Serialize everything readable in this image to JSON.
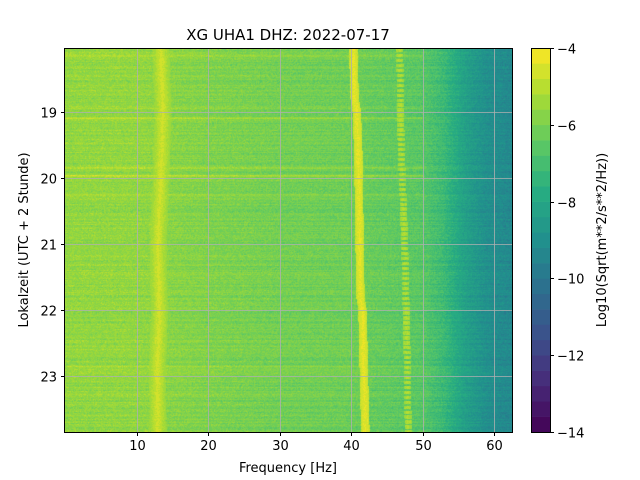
{
  "chart_data": {
    "type": "heatmap",
    "title": "XG UHA1  DHZ: 2022-07-17",
    "xlabel": "Frequency [Hz]",
    "ylabel": "Lokalzeit (UTC + 2 Stunde)",
    "colorbar_label": "Log10(Sqrt(m**2/s**2/Hz))",
    "colormap": "viridis",
    "xlim": [
      0,
      62.5
    ],
    "ylim": [
      18.05,
      23.85
    ],
    "y_inverted": true,
    "grid": true,
    "x_ticks": [
      10,
      20,
      30,
      40,
      50,
      60
    ],
    "x_tick_labels": [
      "10",
      "20",
      "30",
      "40",
      "50",
      "60"
    ],
    "y_ticks": [
      19,
      20,
      21,
      22,
      23
    ],
    "y_tick_labels": [
      "19",
      "20",
      "21",
      "22",
      "23"
    ],
    "color_range": [
      -14,
      -4
    ],
    "color_levels": 25,
    "colorbar_ticks": [
      -4,
      -6,
      -8,
      -10,
      -12,
      -14
    ],
    "colorbar_tick_labels": [
      "−4",
      "−6",
      "−8",
      "−10",
      "−12",
      "−14"
    ],
    "background_level_by_frequency": [
      {
        "freq": 0,
        "level": -5.6
      },
      {
        "freq": 10,
        "level": -5.6
      },
      {
        "freq": 20,
        "level": -5.9
      },
      {
        "freq": 30,
        "level": -6.1
      },
      {
        "freq": 40,
        "level": -6.2
      },
      {
        "freq": 45,
        "level": -6.4
      },
      {
        "freq": 50,
        "level": -6.6
      },
      {
        "freq": 53,
        "level": -7.2
      },
      {
        "freq": 56,
        "level": -8.3
      },
      {
        "freq": 59,
        "level": -9.0
      },
      {
        "freq": 62.5,
        "level": -9.3
      }
    ],
    "spectral_lines": [
      {
        "name": "line ~13 Hz",
        "level": -4.6,
        "width_hz": 1.2,
        "track": [
          [
            18.05,
            13.4
          ],
          [
            19.0,
            13.7
          ],
          [
            20.0,
            13.4
          ],
          [
            21.0,
            13.0
          ],
          [
            22.0,
            13.2
          ],
          [
            23.0,
            12.9
          ],
          [
            23.85,
            13.0
          ]
        ]
      },
      {
        "name": "line ~42 Hz",
        "level": -4.3,
        "width_hz": 0.6,
        "track": [
          [
            18.05,
            40.3
          ],
          [
            18.8,
            40.5
          ],
          [
            19.0,
            40.8
          ],
          [
            19.6,
            41.0
          ],
          [
            21.0,
            41.2
          ],
          [
            21.8,
            41.3
          ],
          [
            22.0,
            41.6
          ],
          [
            23.0,
            41.8
          ],
          [
            23.85,
            42.0
          ]
        ]
      },
      {
        "name": "line ~48 Hz",
        "level": -5.0,
        "width_hz": 0.5,
        "dashed": true,
        "track": [
          [
            18.05,
            46.8
          ],
          [
            19.5,
            47.0
          ],
          [
            21.0,
            47.5
          ],
          [
            22.5,
            47.8
          ],
          [
            23.85,
            48.0
          ]
        ]
      }
    ],
    "horizontal_bands": [
      {
        "time": 18.15,
        "level": -5.0
      },
      {
        "time": 18.95,
        "level": -5.1
      },
      {
        "time": 19.1,
        "level": -4.8
      },
      {
        "time": 19.85,
        "level": -5.2
      },
      {
        "time": 19.97,
        "level": -4.6
      },
      {
        "time": 20.25,
        "level": -5.3
      },
      {
        "time": 22.85,
        "level": -5.3
      },
      {
        "time": 23.6,
        "level": -5.4
      }
    ]
  }
}
